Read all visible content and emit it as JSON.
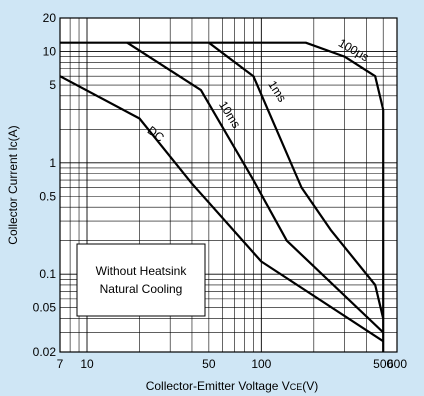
{
  "chart_data": {
    "type": "line",
    "x_scale": "log",
    "y_scale": "log",
    "xlim": [
      7,
      600
    ],
    "ylim": [
      0.02,
      20
    ],
    "grid": true,
    "xlabel": "Collector-Emitter Voltage V",
    "xlabel_sub": "CE",
    "xlabel_unit": "(V)",
    "ylabel": "Collector Current Ic(A)",
    "x_ticks": [
      {
        "v": 7,
        "label": "7"
      },
      {
        "v": 10,
        "label": "10"
      },
      {
        "v": 50,
        "label": "50"
      },
      {
        "v": 100,
        "label": "100"
      },
      {
        "v": 500,
        "label": "500"
      },
      {
        "v": 600,
        "label": "600"
      }
    ],
    "y_ticks": [
      {
        "v": 20,
        "label": "20"
      },
      {
        "v": 10,
        "label": "10"
      },
      {
        "v": 5,
        "label": "5"
      },
      {
        "v": 1,
        "label": "1"
      },
      {
        "v": 0.5,
        "label": "0.5"
      },
      {
        "v": 0.1,
        "label": "0.1"
      },
      {
        "v": 0.05,
        "label": "0.05"
      },
      {
        "v": 0.02,
        "label": "0.02"
      }
    ],
    "series": [
      {
        "name": "100μs",
        "points": [
          [
            7,
            12
          ],
          [
            180,
            12
          ],
          [
            300,
            9
          ],
          [
            450,
            6
          ],
          [
            500,
            3
          ],
          [
            500,
            0.02
          ]
        ],
        "label_at": [
          330,
          9.6
        ],
        "label_angle": 30
      },
      {
        "name": "1ms",
        "points": [
          [
            50,
            12
          ],
          [
            90,
            6
          ],
          [
            170,
            0.6
          ],
          [
            250,
            0.25
          ],
          [
            450,
            0.08
          ],
          [
            500,
            0.04
          ]
        ],
        "label_at": [
          118,
          4.2
        ],
        "label_angle": 57
      },
      {
        "name": "10ms",
        "points": [
          [
            17,
            12
          ],
          [
            45,
            4.5
          ],
          [
            90,
            0.7
          ],
          [
            140,
            0.2
          ],
          [
            500,
            0.03
          ]
        ],
        "label_at": [
          63,
          2.6
        ],
        "label_angle": 58
      },
      {
        "name": "DC",
        "points": [
          [
            7,
            6
          ],
          [
            20,
            2.5
          ],
          [
            40,
            0.65
          ],
          [
            100,
            0.13
          ],
          [
            500,
            0.025
          ]
        ],
        "label_at": [
          24,
          1.7
        ],
        "label_angle": 38
      }
    ],
    "annotation": {
      "lines": [
        "Without Heatsink",
        "Natural Cooling"
      ]
    }
  }
}
